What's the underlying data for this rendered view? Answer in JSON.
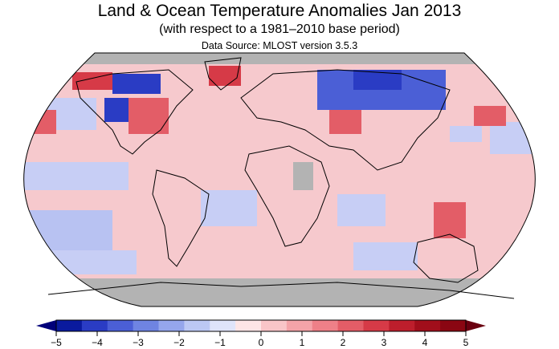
{
  "title": "Land & Ocean Temperature Anomalies Jan 2013",
  "subtitle": "(with respect to a 1981–2010 base period)",
  "source": "Data Source: MLOST version 3.5.3",
  "map": {
    "projection": "robinson",
    "missing_data_color": "#b3b3b3",
    "ocean_background_color": "#f6c9cd",
    "coastline_color": "#000000"
  },
  "colorbar": {
    "min": -5,
    "max": 5,
    "extend": "both",
    "ticks": [
      "−5",
      "−4",
      "−3",
      "−2",
      "−1",
      "0",
      "1",
      "2",
      "3",
      "4",
      "5"
    ],
    "colors": [
      "#0a1a9e",
      "#2a3cc4",
      "#4b5fd6",
      "#6f84e2",
      "#95a6ec",
      "#bcc8f4",
      "#dfe4fa",
      "#fde5e6",
      "#f9c5c8",
      "#f4a3a8",
      "#ee8088",
      "#e35d67",
      "#d63a47",
      "#bd1e2c",
      "#a10e1b",
      "#8a0612"
    ],
    "low_extend_color": "#00007a",
    "high_extend_color": "#6a0010"
  }
}
